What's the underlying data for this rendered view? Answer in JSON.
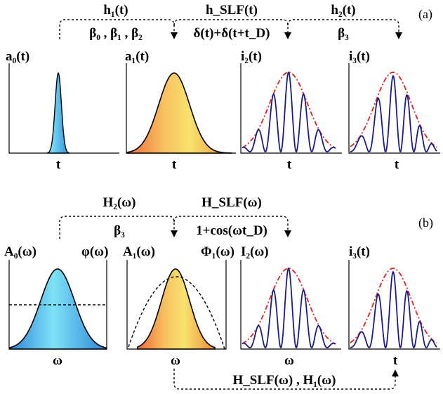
{
  "panel_a": {
    "tag": "(a)",
    "transfers": [
      {
        "top": "h₁(t)",
        "bottom": "β₀ , β₁ , β₂"
      },
      {
        "top": "h_SLF(t)",
        "bottom": "δ(t)+δ(t+t_D)"
      },
      {
        "top": "h₂(t)",
        "bottom": "β₃"
      }
    ],
    "plots": [
      {
        "ylabel": "a₀(t)",
        "xlabel": "t"
      },
      {
        "ylabel": "a₁(t)",
        "xlabel": "t"
      },
      {
        "ylabel": "i₂(t)",
        "xlabel": "t"
      },
      {
        "ylabel": "i₃(t)",
        "xlabel": "t"
      }
    ]
  },
  "panel_b": {
    "tag": "(b)",
    "transfers": [
      {
        "top": "H₂(ω)",
        "bottom": "β₃"
      },
      {
        "top": "H_SLF(ω)",
        "bottom": "1+cos(ωt_D)"
      }
    ],
    "plots": [
      {
        "ylabel": "A₀(ω)",
        "ylabel2": "φ(ω)",
        "xlabel": "ω"
      },
      {
        "ylabel": "A₁(ω)",
        "ylabel2": "Φ₁(ω)",
        "xlabel": "ω"
      },
      {
        "ylabel": "I₂(ω)",
        "xlabel": "ω"
      },
      {
        "ylabel": "i₃(t)",
        "xlabel": "t"
      }
    ],
    "bottom_transfer": "H_SLF(ω) ,  H₁(ω)"
  },
  "colors": {
    "oscillation": "#1a1a8c",
    "envelope": "#e0221c",
    "orange_top": "#f39a3a",
    "yellow": "#f7e36e",
    "blue_light": "#6fe3f5",
    "blue_dark": "#2f86d6"
  }
}
